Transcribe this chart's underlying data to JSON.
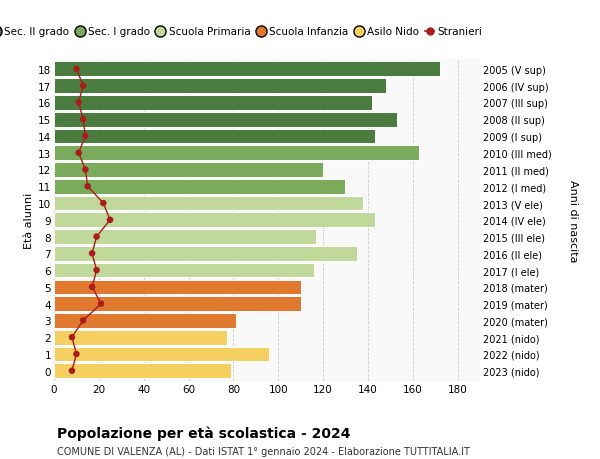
{
  "ages": [
    18,
    17,
    16,
    15,
    14,
    13,
    12,
    11,
    10,
    9,
    8,
    7,
    6,
    5,
    4,
    3,
    2,
    1,
    0
  ],
  "anni_nascita": [
    "2005 (V sup)",
    "2006 (IV sup)",
    "2007 (III sup)",
    "2008 (II sup)",
    "2009 (I sup)",
    "2010 (III med)",
    "2011 (II med)",
    "2012 (I med)",
    "2013 (V ele)",
    "2014 (IV ele)",
    "2015 (III ele)",
    "2016 (II ele)",
    "2017 (I ele)",
    "2018 (mater)",
    "2019 (mater)",
    "2020 (mater)",
    "2021 (nido)",
    "2022 (nido)",
    "2023 (nido)"
  ],
  "bar_values": [
    172,
    148,
    142,
    153,
    143,
    163,
    120,
    130,
    138,
    143,
    117,
    135,
    116,
    110,
    110,
    81,
    77,
    96,
    79
  ],
  "bar_colors": [
    "#4a7c40",
    "#4a7c40",
    "#4a7c40",
    "#4a7c40",
    "#4a7c40",
    "#7aaa5c",
    "#7aaa5c",
    "#7aaa5c",
    "#c0d89a",
    "#c0d89a",
    "#c0d89a",
    "#c0d89a",
    "#c0d89a",
    "#e07830",
    "#e07830",
    "#e07830",
    "#f5d060",
    "#f5d060",
    "#f5d060"
  ],
  "stranieri_values": [
    10,
    13,
    11,
    13,
    14,
    11,
    14,
    15,
    22,
    25,
    19,
    17,
    19,
    17,
    21,
    13,
    8,
    10,
    8
  ],
  "legend_labels": [
    "Sec. II grado",
    "Sec. I grado",
    "Scuola Primaria",
    "Scuola Infanzia",
    "Asilo Nido",
    "Stranieri"
  ],
  "legend_colors": [
    "#4a7c40",
    "#7aaa5c",
    "#c0d89a",
    "#e07830",
    "#f5d060",
    "#aa1c1c"
  ],
  "xlabel_vals": [
    0,
    20,
    40,
    60,
    80,
    100,
    120,
    140,
    160,
    180
  ],
  "xlim": [
    0,
    190
  ],
  "ylabel_left": "Età alunni",
  "ylabel_right": "Anni di nascita",
  "title": "Popolazione per età scolastica - 2024",
  "subtitle": "COMUNE DI VALENZA (AL) - Dati ISTAT 1° gennaio 2024 - Elaborazione TUTTITALIA.IT",
  "bg_color": "#ffffff",
  "plot_bg_color": "#f9f9f9",
  "grid_color": "#cccccc",
  "stranieri_color": "#aa1c1c"
}
